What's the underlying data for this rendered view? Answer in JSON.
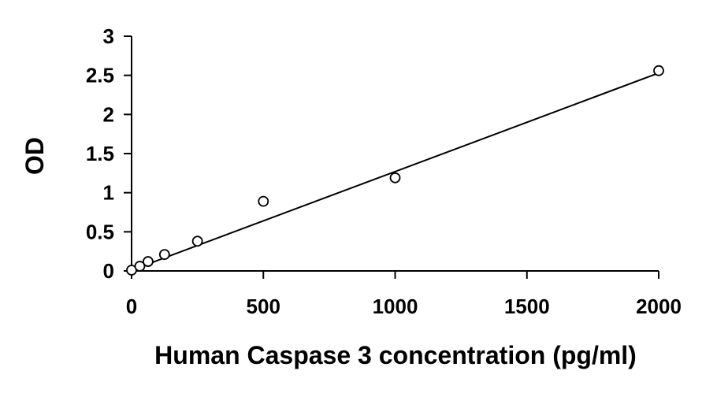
{
  "chart_data": {
    "type": "scatter",
    "xlabel": "Human Caspase 3 concentration (pg/ml)",
    "ylabel": "OD",
    "xlim": [
      0,
      2000
    ],
    "ylim": [
      0,
      3
    ],
    "xticks": [
      "0",
      "500",
      "1000",
      "1500",
      "2000"
    ],
    "yticks": [
      "0",
      "0.5",
      "1",
      "1.5",
      "2",
      "2.5",
      "3"
    ],
    "grid": false,
    "legend": "none",
    "series": [
      {
        "x": [
          0,
          31.25,
          62.5,
          125,
          250,
          500,
          1000,
          2000
        ],
        "y": [
          0.01,
          0.06,
          0.12,
          0.21,
          0.38,
          0.89,
          1.19,
          2.56
        ]
      }
    ],
    "trendline": {
      "type": "linear",
      "x": [
        0,
        2000
      ],
      "y": [
        0.01,
        2.53
      ]
    },
    "colors": {
      "axis": "#000000",
      "marker_stroke": "#000000",
      "marker_fill": "#ffffff",
      "line": "#000000"
    }
  }
}
